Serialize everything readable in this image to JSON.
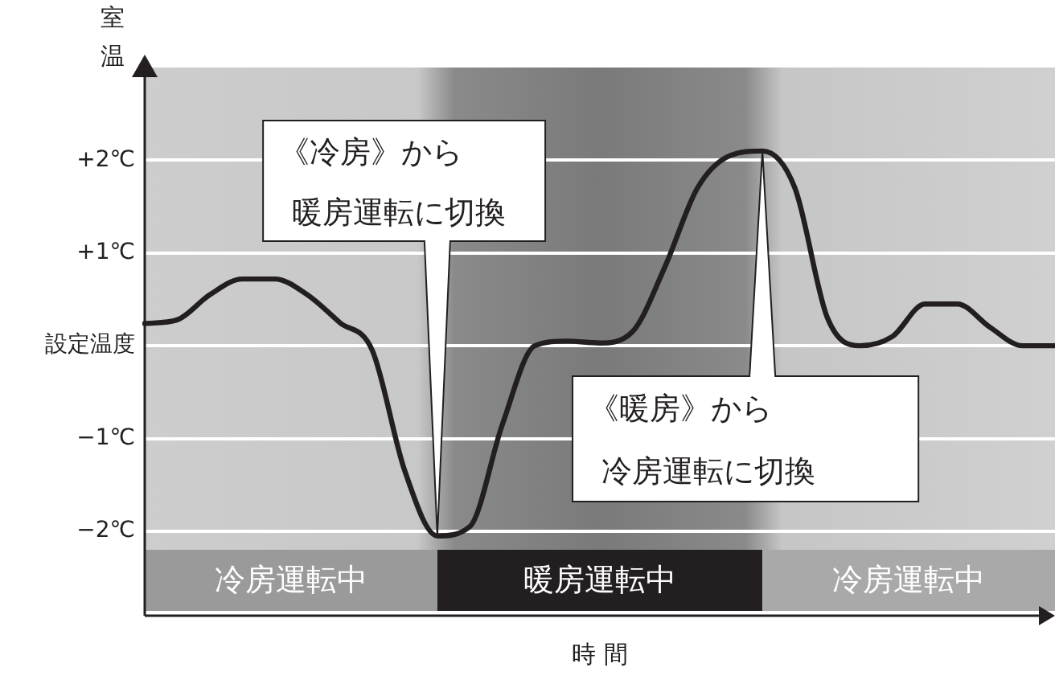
{
  "chart_data": {
    "type": "line",
    "ylabel": "室温",
    "xlabel": "時 間",
    "categories": [
      null,
      null,
      null,
      null,
      null,
      null,
      null,
      null,
      null,
      null,
      null,
      null,
      null,
      null,
      null,
      null,
      null,
      null,
      null,
      null,
      null,
      null,
      null,
      null,
      null,
      null,
      null,
      null,
      null
    ],
    "series": [
      {
        "color": "#231f20",
        "values": [
          0.24,
          0.28,
          0.55,
          0.72,
          0.72,
          0.55,
          0.25,
          -0.05,
          -1.35,
          -2.05,
          -1.95,
          -0.85,
          0.0,
          0.05,
          0.03,
          0.15,
          0.85,
          1.7,
          2.05,
          2.1,
          1.7,
          0.3,
          0.0,
          0.1,
          0.45,
          0.45,
          0.2,
          0.0,
          0.0
        ]
      }
    ],
    "ylim": [
      -2.2,
      3
    ],
    "yticks": [
      {
        "value": 2,
        "label": "+2℃"
      },
      {
        "value": 1,
        "label": "+1℃"
      },
      {
        "value": 0,
        "label": "設定温度"
      },
      {
        "value": -1,
        "label": "−1℃"
      },
      {
        "value": -2,
        "label": "−2℃"
      }
    ],
    "grid": "y",
    "legend": false,
    "marker": "none",
    "line_style": "solid",
    "annotations": [
      "《冷房》から暖房運転に切換",
      "《暖房》から冷房運転に切換",
      "冷房運転中",
      "暖房運転中",
      "冷房運転中"
    ]
  }
}
